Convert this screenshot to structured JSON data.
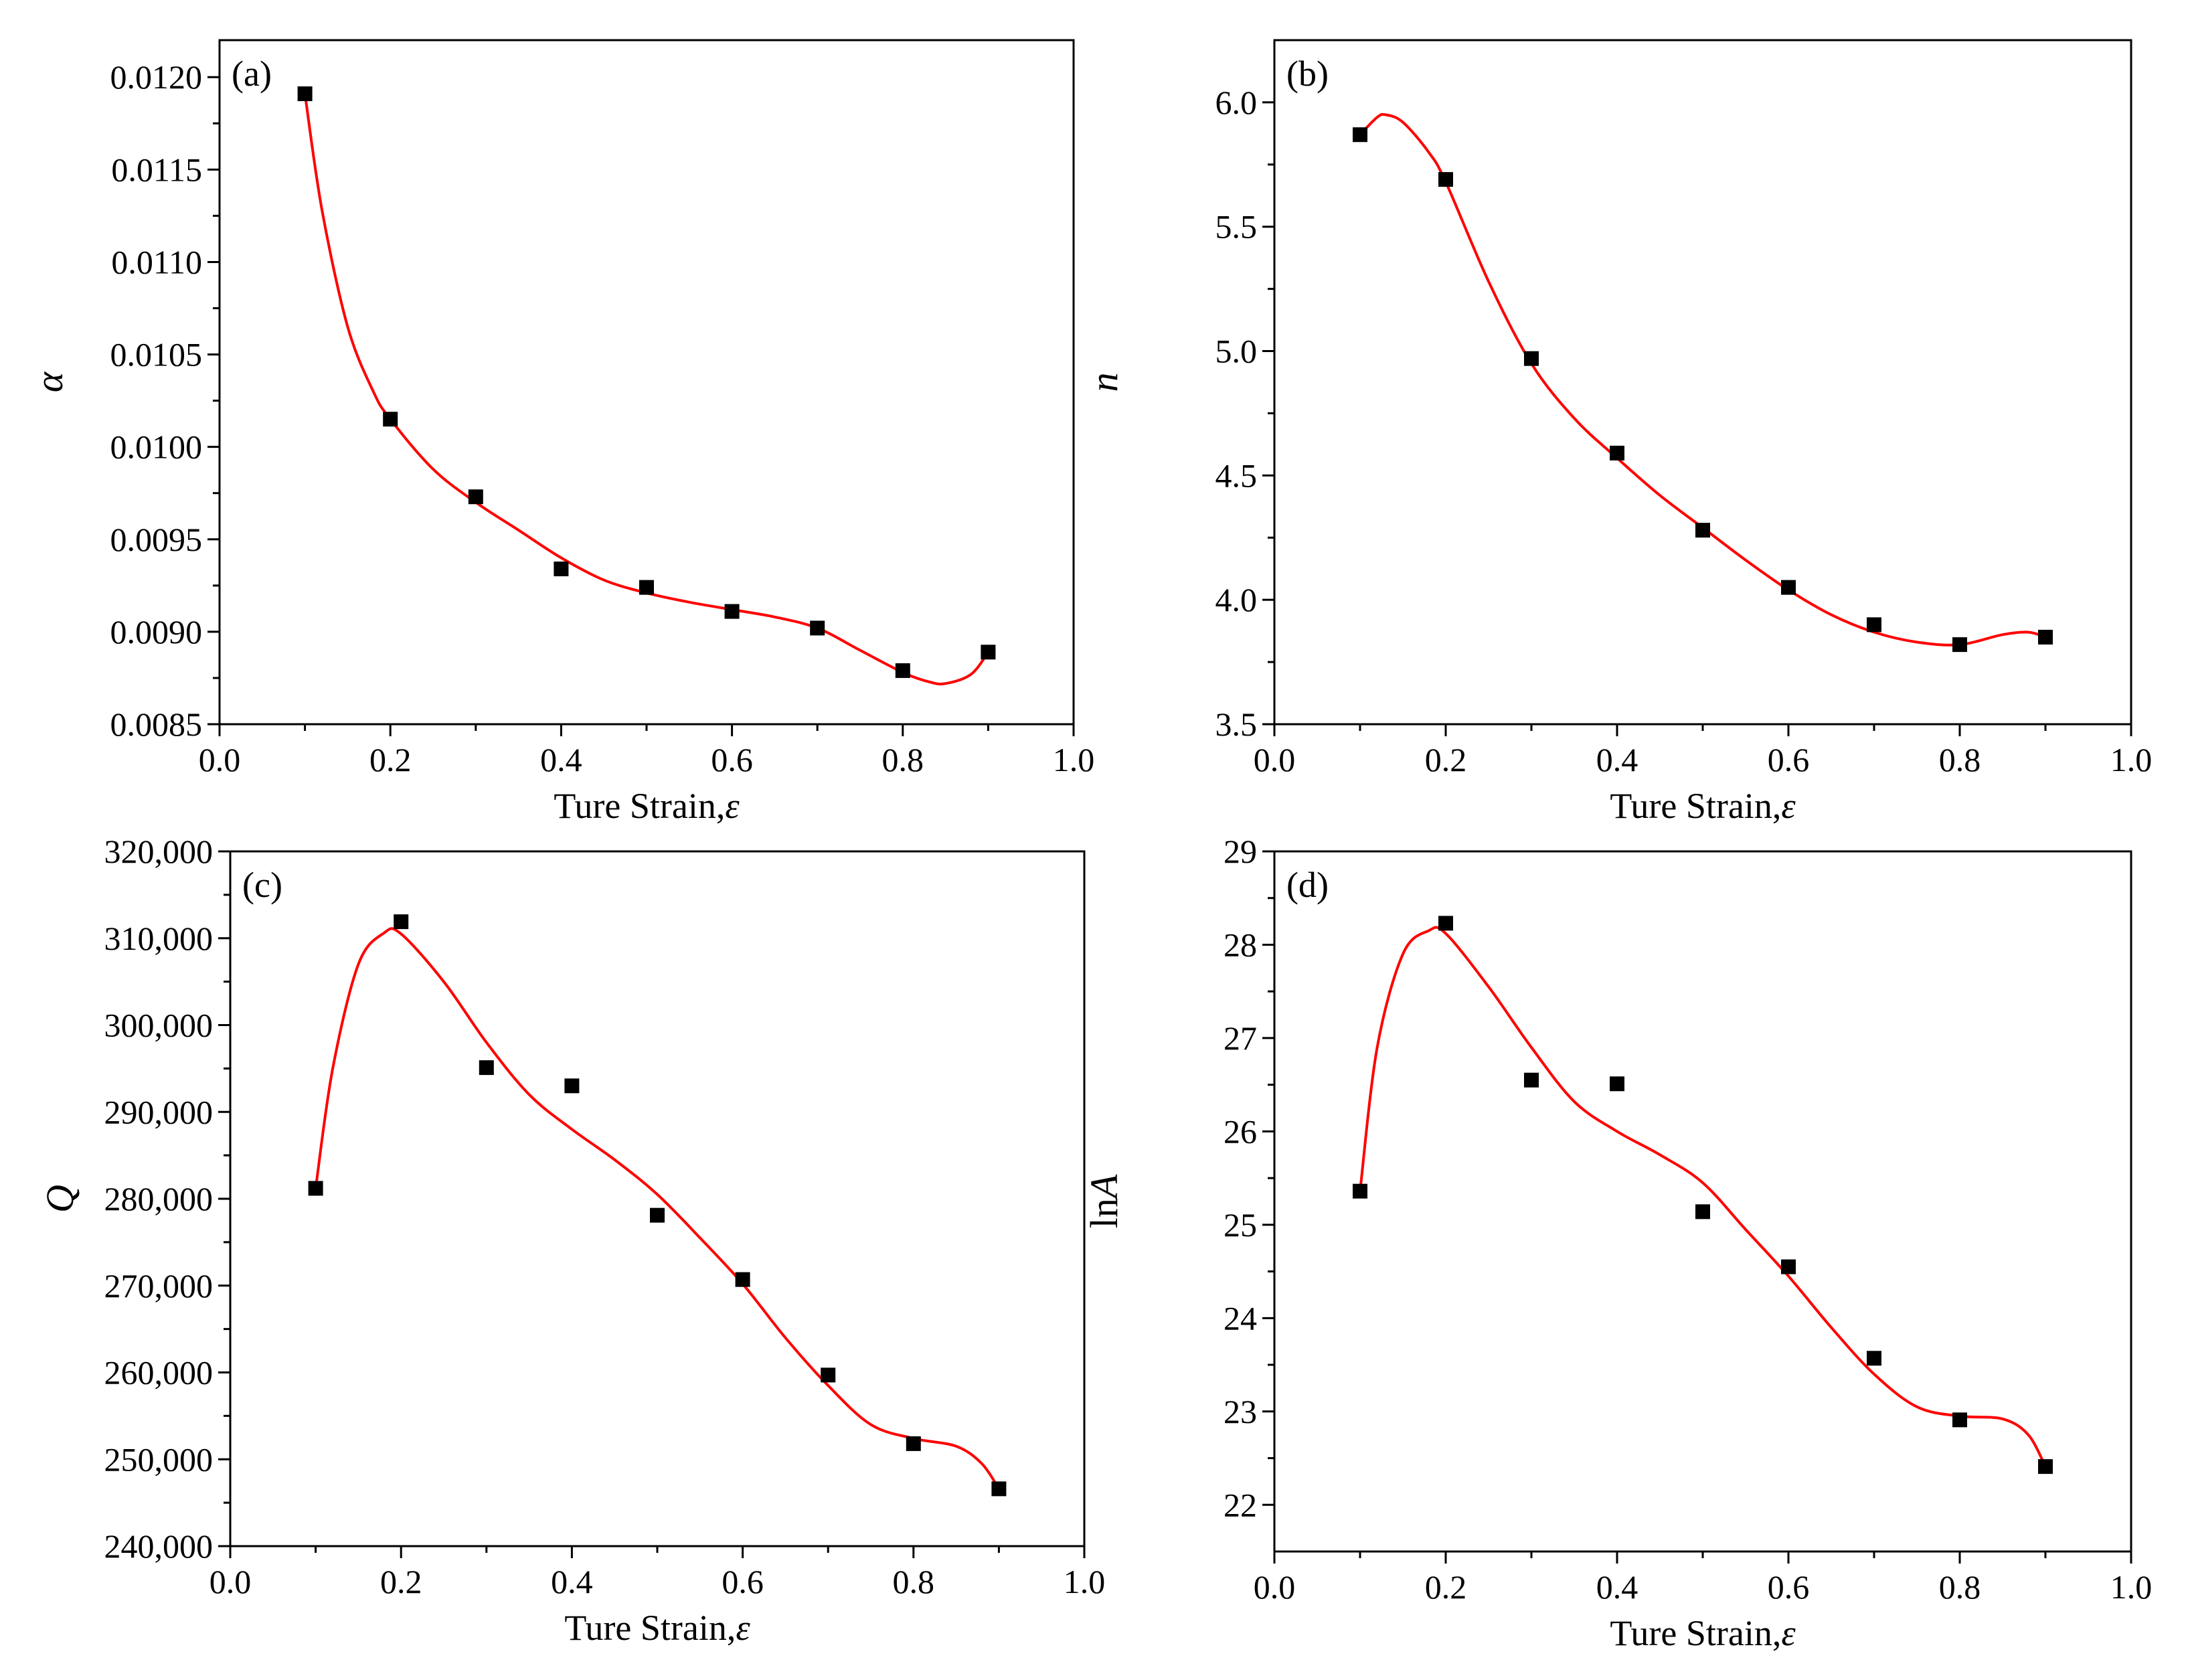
{
  "chart_data": [
    {
      "type": "scatter",
      "panel_label": "(a)",
      "xlabel": "Ture Strain,",
      "xlabel_symbol": "ε",
      "ylabel": "α",
      "ylabel_italic": true,
      "xlim": [
        0.0,
        1.0
      ],
      "ylim": [
        0.0085,
        0.0122
      ],
      "x_ticks": [
        "0.0",
        "0.2",
        "0.4",
        "0.6",
        "0.8",
        "1.0"
      ],
      "y_ticks": [
        "0.0085",
        "0.0090",
        "0.0095",
        "0.0100",
        "0.0105",
        "0.0110",
        "0.0115",
        "0.0120"
      ],
      "x": [
        0.1,
        0.2,
        0.3,
        0.4,
        0.5,
        0.6,
        0.7,
        0.8,
        0.9
      ],
      "y": [
        0.01191,
        0.01015,
        0.00973,
        0.00934,
        0.00924,
        0.00911,
        0.00902,
        0.00879,
        0.00889
      ],
      "fit_curve": {
        "color": "#ff0000",
        "x": [
          0.1,
          0.12,
          0.15,
          0.18,
          0.2,
          0.25,
          0.3,
          0.35,
          0.4,
          0.45,
          0.5,
          0.55,
          0.6,
          0.65,
          0.7,
          0.75,
          0.8,
          0.83,
          0.85,
          0.88,
          0.9
        ],
        "y": [
          0.01191,
          0.01128,
          0.01065,
          0.0103,
          0.01015,
          0.00988,
          0.0097,
          0.00955,
          0.0094,
          0.00928,
          0.00921,
          0.00916,
          0.00912,
          0.00908,
          0.00902,
          0.0089,
          0.00878,
          0.00873,
          0.00872,
          0.00877,
          0.00889
        ]
      },
      "marker_color": "#000000"
    },
    {
      "type": "scatter",
      "panel_label": "(b)",
      "xlabel": "Ture Strain,",
      "xlabel_symbol": "ε",
      "ylabel": "n",
      "ylabel_italic": true,
      "xlim": [
        0.0,
        1.0
      ],
      "ylim": [
        3.5,
        6.25
      ],
      "x_ticks": [
        "0.0",
        "0.2",
        "0.4",
        "0.6",
        "0.8",
        "1.0"
      ],
      "y_ticks": [
        "3.5",
        "4.0",
        "4.5",
        "5.0",
        "5.5",
        "6.0"
      ],
      "x": [
        0.1,
        0.2,
        0.3,
        0.4,
        0.5,
        0.6,
        0.7,
        0.8,
        0.9
      ],
      "y": [
        5.87,
        5.69,
        4.97,
        4.59,
        4.28,
        4.05,
        3.9,
        3.82,
        3.85
      ],
      "fit_curve": {
        "color": "#ff0000",
        "x": [
          0.1,
          0.12,
          0.13,
          0.15,
          0.18,
          0.2,
          0.25,
          0.3,
          0.35,
          0.4,
          0.45,
          0.5,
          0.55,
          0.6,
          0.65,
          0.7,
          0.75,
          0.8,
          0.85,
          0.88,
          0.9
        ],
        "y": [
          5.87,
          5.94,
          5.95,
          5.92,
          5.8,
          5.68,
          5.28,
          4.95,
          4.73,
          4.57,
          4.42,
          4.29,
          4.16,
          4.04,
          3.94,
          3.87,
          3.83,
          3.82,
          3.86,
          3.87,
          3.85
        ]
      },
      "marker_color": "#000000"
    },
    {
      "type": "scatter",
      "panel_label": "(c)",
      "xlabel": "Ture Strain,",
      "xlabel_symbol": "ε",
      "ylabel": "Q",
      "ylabel_italic": true,
      "xlim": [
        0.0,
        1.0
      ],
      "ylim": [
        240000,
        320000
      ],
      "x_ticks": [
        "0.0",
        "0.2",
        "0.4",
        "0.6",
        "0.8",
        "1.0"
      ],
      "y_ticks": [
        "240,000",
        "250,000",
        "260,000",
        "270,000",
        "280,000",
        "290,000",
        "300,000",
        "310,000",
        "320,000"
      ],
      "x": [
        0.1,
        0.2,
        0.3,
        0.4,
        0.5,
        0.6,
        0.7,
        0.8,
        0.9
      ],
      "y": [
        281200,
        311900,
        295100,
        293000,
        278100,
        270700,
        259700,
        251800,
        246600
      ],
      "fit_curve": {
        "color": "#ff0000",
        "x": [
          0.1,
          0.12,
          0.15,
          0.18,
          0.2,
          0.25,
          0.3,
          0.35,
          0.4,
          0.45,
          0.5,
          0.55,
          0.6,
          0.65,
          0.7,
          0.75,
          0.8,
          0.85,
          0.88,
          0.9
        ],
        "y": [
          281200,
          295000,
          307000,
          310600,
          310500,
          305000,
          298000,
          292000,
          288000,
          284500,
          280500,
          275500,
          270200,
          264000,
          258500,
          254000,
          252400,
          251500,
          249500,
          246600
        ]
      },
      "marker_color": "#000000"
    },
    {
      "type": "scatter",
      "panel_label": "(d)",
      "xlabel": "Ture Strain,",
      "xlabel_symbol": "ε",
      "ylabel": "lnA",
      "ylabel_italic": false,
      "xlim": [
        0.0,
        1.0
      ],
      "ylim": [
        21.5,
        29.0
      ],
      "x_ticks": [
        "0.0",
        "0.2",
        "0.4",
        "0.6",
        "0.8",
        "1.0"
      ],
      "y_ticks": [
        "22",
        "23",
        "24",
        "25",
        "26",
        "27",
        "28",
        "29"
      ],
      "x": [
        0.1,
        0.2,
        0.3,
        0.4,
        0.5,
        0.6,
        0.7,
        0.8,
        0.9
      ],
      "y": [
        25.36,
        28.23,
        26.55,
        26.51,
        25.14,
        24.55,
        23.57,
        22.91,
        22.41
      ],
      "fit_curve": {
        "color": "#ff0000",
        "x": [
          0.1,
          0.12,
          0.15,
          0.18,
          0.2,
          0.25,
          0.3,
          0.35,
          0.4,
          0.45,
          0.5,
          0.55,
          0.6,
          0.65,
          0.7,
          0.75,
          0.8,
          0.85,
          0.88,
          0.9
        ],
        "y": [
          25.36,
          26.9,
          27.9,
          28.15,
          28.12,
          27.55,
          26.9,
          26.32,
          26.0,
          25.75,
          25.45,
          24.95,
          24.45,
          23.9,
          23.4,
          23.05,
          22.95,
          22.92,
          22.75,
          22.41
        ]
      },
      "marker_color": "#000000"
    }
  ]
}
